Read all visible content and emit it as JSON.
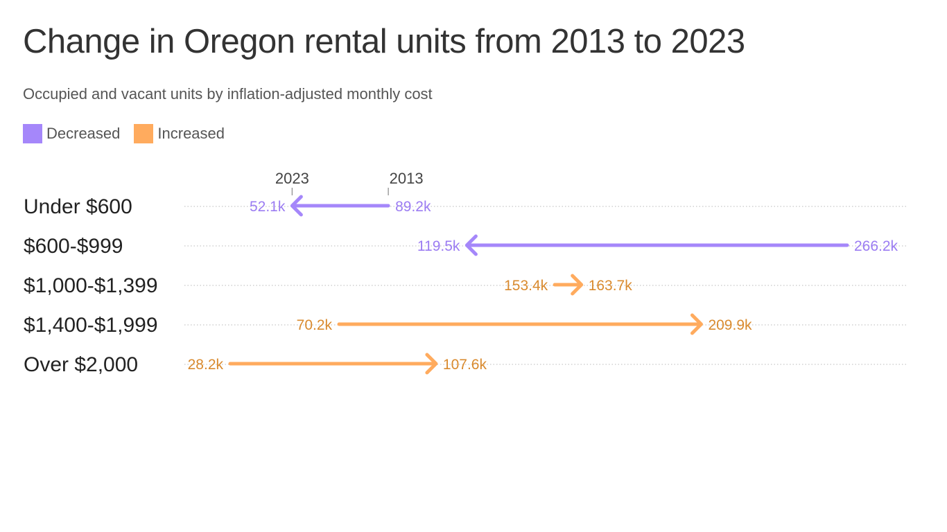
{
  "header": {
    "title": "Change in Oregon rental units from 2013 to 2023",
    "subtitle": "Occupied and vacant units by inflation-adjusted monthly cost"
  },
  "legend": {
    "items": [
      {
        "label": "Decreased",
        "color": "#a587fa"
      },
      {
        "label": "Increased",
        "color": "#ffab5e"
      }
    ]
  },
  "colors": {
    "decreased_line": "#a587fa",
    "decreased_text": "#9b7cf2",
    "increased_line": "#ffab5e",
    "increased_text": "#d98a2e",
    "gridline": "#d0d0d0"
  },
  "chart_data": {
    "type": "arrow",
    "year_markers": {
      "start": "2013",
      "end": "2023"
    },
    "categories": [
      "Under $600",
      "$600-$999",
      "$1,000-$1,399",
      "$1,400-$1,999",
      "Over $2,000"
    ],
    "series": [
      {
        "name": "2013",
        "values": [
          89.2,
          266.2,
          153.4,
          70.2,
          28.2
        ]
      },
      {
        "name": "2023",
        "values": [
          52.1,
          119.5,
          163.7,
          209.9,
          107.6
        ]
      }
    ],
    "value_labels_2013": [
      "89.2k",
      "266.2k",
      "153.4k",
      "70.2k",
      "28.2k"
    ],
    "value_labels_2023": [
      "52.1k",
      "119.5k",
      "163.7k",
      "209.9k",
      "107.6k"
    ],
    "units": "thousands of units",
    "xlim": [
      28.2,
      266.2
    ],
    "legend_position": "top-left"
  }
}
